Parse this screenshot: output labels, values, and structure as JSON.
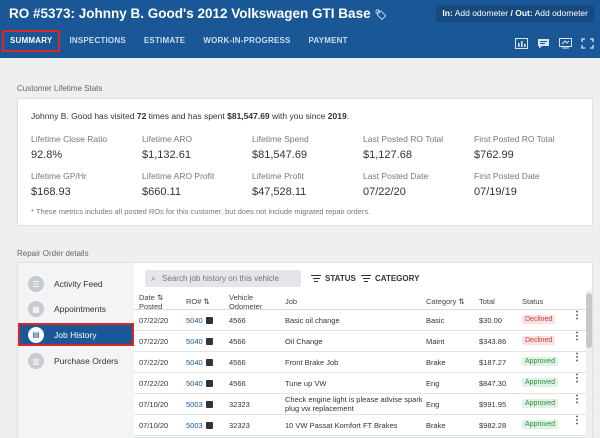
{
  "header": {
    "title": "RO #5373: Johnny B. Good's 2012 Volkswagen GTI Base",
    "odometer_in_label": "In:",
    "odometer_in_value": "Add odometer",
    "odometer_out_label": "/ Out:",
    "odometer_out_value": "Add odometer",
    "tabs": [
      "SUMMARY",
      "INSPECTIONS",
      "ESTIMATE",
      "WORK-IN-PROGRESS",
      "PAYMENT"
    ],
    "active_tab": "SUMMARY",
    "toolbar_icons": [
      "chart-icon",
      "chat-icon",
      "screen-icon",
      "expand-icon"
    ]
  },
  "stats": {
    "section_label": "Customer Lifetime Stats",
    "visit_prefix": "Johnny B. Good has visited ",
    "visit_count": "72",
    "visit_mid": " times and has spent ",
    "visit_spent": "$81,547.69",
    "visit_mid2": " with you since ",
    "visit_year": "2019",
    "visit_suffix": ".",
    "items": [
      {
        "label": "Lifetime Close Ratio",
        "value": "92.8%"
      },
      {
        "label": "Lifetime ARO",
        "value": "$1,132.61"
      },
      {
        "label": "Lifetime Spend",
        "value": "$81,547.69"
      },
      {
        "label": "Last Posted RO Total",
        "value": "$1,127.68"
      },
      {
        "label": "First Posted RO Total",
        "value": "$762.99"
      },
      {
        "label": "Lifetime GP/Hr",
        "value": "$168.93"
      },
      {
        "label": "Lifetime ARO Profit",
        "value": "$660.11"
      },
      {
        "label": "Lifetime Profit",
        "value": "$47,528.11"
      },
      {
        "label": "Last Posted Date",
        "value": "07/22/20"
      },
      {
        "label": "First Posted Date",
        "value": "07/19/19"
      }
    ],
    "footnote": "* These metrics includes all posted ROs for this customer, but does not include migrated repair orders."
  },
  "repair_orders": {
    "section_label": "Repair Order details",
    "nav": [
      "Activity Feed",
      "Appointments",
      "Job History",
      "Purchase Orders"
    ],
    "active_nav": "Job History",
    "search_placeholder": "Search job history on this vehicle",
    "filter_status": "STATUS",
    "filter_category": "CATEGORY",
    "columns": {
      "date_line1": "Date",
      "date_line2": "Posted",
      "ro": "RO#",
      "odo_line1": "Vehicle",
      "odo_line2": "Odometer",
      "job": "Job",
      "category": "Category",
      "total": "Total",
      "status": "Status"
    },
    "rows": [
      {
        "date": "07/22/20",
        "ro": "5040",
        "odometer": "4566",
        "job": "Basic oil change",
        "job2": "",
        "category": "Basic",
        "total": "$30.00",
        "status": "Declined"
      },
      {
        "date": "07/22/20",
        "ro": "5040",
        "odometer": "4566",
        "job": "Oil Change",
        "job2": "",
        "category": "Maint",
        "total": "$343.86",
        "status": "Declined"
      },
      {
        "date": "07/22/20",
        "ro": "5040",
        "odometer": "4566",
        "job": "Front Brake Job",
        "job2": "",
        "category": "Brake",
        "total": "$187.27",
        "status": "Approved"
      },
      {
        "date": "07/22/20",
        "ro": "5040",
        "odometer": "4566",
        "job": "Tune up VW",
        "job2": "",
        "category": "Eng",
        "total": "$847.30",
        "status": "Approved"
      },
      {
        "date": "07/10/20",
        "ro": "5003",
        "odometer": "32323",
        "job": "Check engine light is please advise spark",
        "job2": "plug vw replacement",
        "category": "Eng",
        "total": "$991.95",
        "status": "Approved"
      },
      {
        "date": "07/10/20",
        "ro": "5003",
        "odometer": "32323",
        "job": "10 VW Passat Komfort FT Brakes",
        "job2": "",
        "category": "Brake",
        "total": "$982.28",
        "status": "Approved"
      }
    ]
  }
}
